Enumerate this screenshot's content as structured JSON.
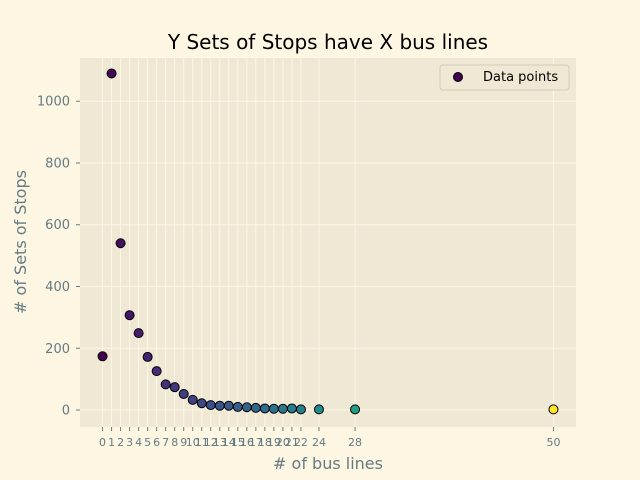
{
  "chart_data": {
    "type": "scatter",
    "title": "Y Sets of Stops have X bus lines",
    "xlabel": "# of bus lines",
    "ylabel": "# of Sets of Stops",
    "xlim": [
      -2.5,
      52.5
    ],
    "ylim": [
      -55,
      1140
    ],
    "grid": true,
    "legend": {
      "position": "top-right",
      "label": "Data points"
    },
    "colormap": "viridis",
    "colors": {
      "figure_background": "#fdf6e3",
      "axes_background": "#eee8d5",
      "grid": "#fdf6e3",
      "text": "#657b83",
      "marker_edge": "#000000"
    },
    "x_ticks": [
      0,
      1,
      2,
      3,
      4,
      5,
      6,
      7,
      8,
      9,
      10,
      11,
      12,
      13,
      14,
      15,
      16,
      17,
      18,
      19,
      20,
      21,
      22,
      24,
      28,
      50
    ],
    "x_tick_labels": [
      "0",
      "1",
      "2",
      "3",
      "4",
      "5",
      "6",
      "7",
      "8",
      "9",
      "10",
      "11",
      "12",
      "13",
      "14",
      "15",
      "16",
      "17",
      "18",
      "19",
      "20",
      "21",
      "22",
      "24",
      "28",
      "50"
    ],
    "y_ticks": [
      0,
      200,
      400,
      600,
      800,
      1000
    ],
    "y_tick_labels": [
      "0",
      "200",
      "400",
      "600",
      "800",
      "1000"
    ],
    "series": [
      {
        "name": "Data points",
        "x": [
          0,
          1,
          2,
          3,
          4,
          5,
          6,
          7,
          8,
          9,
          10,
          11,
          12,
          13,
          14,
          15,
          16,
          17,
          18,
          19,
          20,
          21,
          22,
          24,
          28,
          50
        ],
        "y": [
          174,
          1090,
          540,
          307,
          249,
          172,
          126,
          83,
          74,
          52,
          33,
          22,
          16,
          14,
          14,
          10,
          9,
          7,
          5,
          4,
          4,
          5,
          2,
          2,
          2,
          2
        ]
      }
    ]
  }
}
